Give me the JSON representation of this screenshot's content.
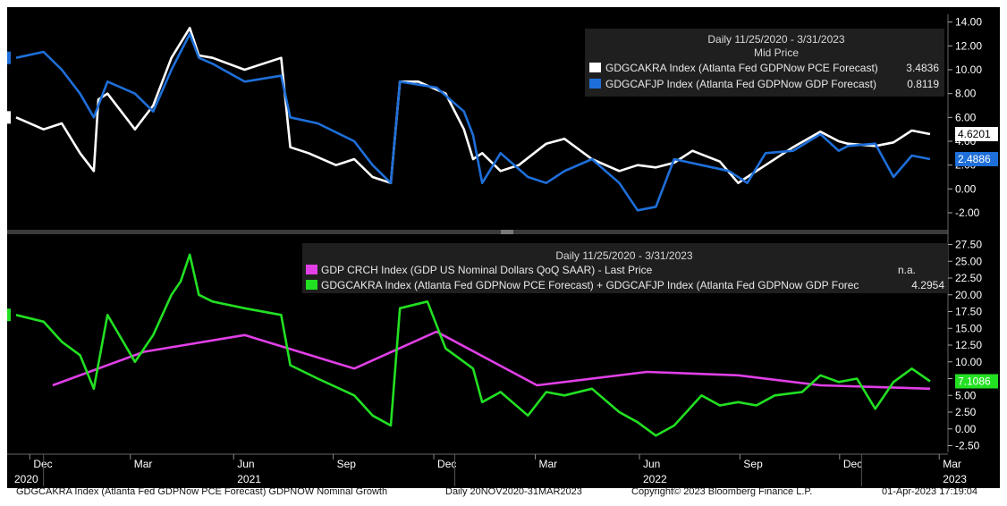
{
  "colors": {
    "background": "#000000",
    "pce": "#ffffff",
    "gdp": "#1e6fd9",
    "crch": "#e040e6",
    "sum": "#22e022",
    "axis_text": "#ffffff"
  },
  "legend_top": {
    "header": "Daily 11/25/2020 - 3/31/2023",
    "subheader": "Mid Price",
    "items": [
      {
        "label": "GDGCAKRA Index (Atlanta Fed GDPNow PCE Forecast)",
        "value": "3.4836"
      },
      {
        "label": "GDGCAFJP Index (Atlanta Fed GDPNow GDP Forecast)",
        "value": "0.8119"
      }
    ]
  },
  "legend_bottom": {
    "header": "Daily 11/25/2020 - 3/31/2023",
    "items": [
      {
        "label": "GDP CRCH Index (GDP US Nominal Dollars QoQ SAAR) - Last Price",
        "value": "n.a."
      },
      {
        "label": "GDGCAKRA Index (Atlanta Fed GDPNow PCE Forecast) + GDGCAFJP Index (Atlanta Fed GDPNow GDP Forec",
        "value": "4.2954"
      }
    ]
  },
  "footer": {
    "title": "GDGCAKRA Index (Atlanta Fed GDPNow PCE Forecast) GDPNOW Nominal Growth",
    "range": "Daily 20NOV2020-31MAR2023",
    "copyright": "Copyright© 2023 Bloomberg Finance L.P.",
    "timestamp": "01-Apr-2023 17:19:04"
  },
  "chart_data": [
    {
      "type": "line",
      "panel": "top",
      "ylim": [
        -3.2,
        14.8
      ],
      "yticks": [
        "14.00",
        "12.00",
        "10.00",
        "8.00",
        "6.00",
        "4.00",
        "2.00",
        "0.00",
        "-2.00"
      ],
      "last_value_labels": [
        {
          "series": "GDGCAKRA Index",
          "label": "4.6201"
        },
        {
          "series": "GDGCAFJP Index",
          "label": "2.4886"
        }
      ],
      "series": [
        {
          "name": "GDGCAKRA Index",
          "color": "#ffffff",
          "x": [
            0,
            0.03,
            0.05,
            0.07,
            0.085,
            0.09,
            0.1,
            0.13,
            0.15,
            0.17,
            0.19,
            0.2,
            0.215,
            0.25,
            0.29,
            0.3,
            0.32,
            0.35,
            0.37,
            0.39,
            0.41,
            0.42,
            0.44,
            0.47,
            0.49,
            0.5,
            0.51,
            0.53,
            0.55,
            0.58,
            0.6,
            0.63,
            0.66,
            0.68,
            0.7,
            0.72,
            0.74,
            0.77,
            0.79,
            0.8,
            0.82,
            0.85,
            0.88,
            0.9,
            0.91,
            0.94,
            0.96,
            0.98,
            1.0
          ],
          "y": [
            6,
            5,
            5.5,
            3,
            1.5,
            7.5,
            8,
            5,
            7,
            11,
            13.5,
            11.2,
            11,
            10,
            11,
            3.5,
            3,
            2,
            2.5,
            1,
            0.5,
            9,
            9,
            8,
            5,
            2.5,
            3,
            1.5,
            2,
            3.8,
            4.2,
            2.5,
            1.5,
            2,
            1.8,
            2.2,
            3.2,
            2.3,
            0.5,
            1,
            2,
            3.5,
            4.8,
            4,
            3.8,
            3.6,
            3.9,
            4.9,
            4.6
          ]
        },
        {
          "name": "GDGCAFJP Index",
          "color": "#1e6fd9",
          "x": [
            0,
            0.03,
            0.05,
            0.07,
            0.085,
            0.1,
            0.13,
            0.15,
            0.17,
            0.19,
            0.2,
            0.215,
            0.25,
            0.29,
            0.3,
            0.33,
            0.37,
            0.39,
            0.41,
            0.42,
            0.46,
            0.49,
            0.5,
            0.51,
            0.53,
            0.56,
            0.58,
            0.6,
            0.63,
            0.66,
            0.68,
            0.7,
            0.72,
            0.75,
            0.78,
            0.8,
            0.82,
            0.85,
            0.88,
            0.9,
            0.91,
            0.94,
            0.96,
            0.98,
            1.0
          ],
          "y": [
            11,
            11.5,
            10,
            8,
            6,
            9,
            8,
            6.5,
            10,
            13,
            11,
            10.5,
            9,
            9.5,
            6,
            5.5,
            4,
            2,
            0.5,
            9,
            8.5,
            6.5,
            4.5,
            0.5,
            3,
            1,
            0.5,
            1.5,
            2.5,
            0.5,
            -1.8,
            -1.5,
            2.5,
            2,
            1.5,
            0.5,
            3,
            3.2,
            4.6,
            3.2,
            3.6,
            3.8,
            1,
            2.8,
            2.5
          ]
        }
      ]
    },
    {
      "type": "line",
      "panel": "bottom",
      "ylim": [
        -3.5,
        28.5
      ],
      "yticks": [
        "27.50",
        "25.00",
        "22.50",
        "20.00",
        "17.50",
        "15.00",
        "12.50",
        "10.00",
        "7.50",
        "5.00",
        "2.50",
        "0.00",
        "-2.50"
      ],
      "last_value_labels": [
        {
          "series": "GDGCAKRA Index + GDGCAFJP Index",
          "label": "7.1086"
        }
      ],
      "x_labels": [
        {
          "month": "Dec",
          "year": "2020",
          "pos": 0.015
        },
        {
          "month": "Mar",
          "year": "",
          "pos": 0.125
        },
        {
          "month": "Jun",
          "year": "2021",
          "pos": 0.238
        },
        {
          "month": "Sep",
          "year": "",
          "pos": 0.347
        },
        {
          "month": "Dec",
          "year": "",
          "pos": 0.457
        },
        {
          "month": "Mar",
          "year": "",
          "pos": 0.568
        },
        {
          "month": "Jun",
          "year": "2022",
          "pos": 0.682
        },
        {
          "month": "Sep",
          "year": "",
          "pos": 0.792
        },
        {
          "month": "Dec",
          "year": "",
          "pos": 0.901
        },
        {
          "month": "Mar",
          "year": "2023",
          "pos": 1.01
        }
      ],
      "series": [
        {
          "name": "GDP CRCH Index",
          "color": "#e040e6",
          "x": [
            0.04,
            0.14,
            0.25,
            0.37,
            0.46,
            0.57,
            0.69,
            0.79,
            0.88,
            1.0
          ],
          "y": [
            6.5,
            11.5,
            14,
            9,
            14.5,
            6.5,
            8.5,
            8,
            6.5,
            6
          ]
        },
        {
          "name": "GDGCAKRA Index + GDGCAFJP Index",
          "color": "#22e022",
          "x": [
            0,
            0.03,
            0.05,
            0.07,
            0.085,
            0.1,
            0.13,
            0.15,
            0.17,
            0.18,
            0.19,
            0.2,
            0.215,
            0.25,
            0.29,
            0.3,
            0.33,
            0.37,
            0.39,
            0.41,
            0.42,
            0.45,
            0.47,
            0.5,
            0.51,
            0.53,
            0.56,
            0.58,
            0.6,
            0.63,
            0.66,
            0.68,
            0.7,
            0.72,
            0.75,
            0.77,
            0.79,
            0.81,
            0.83,
            0.86,
            0.88,
            0.9,
            0.92,
            0.94,
            0.96,
            0.98,
            1.0
          ],
          "y": [
            17,
            16,
            13,
            11,
            6,
            17,
            10,
            14,
            20,
            22,
            26,
            20,
            19,
            18,
            17,
            9.5,
            7.5,
            5,
            2,
            0.5,
            18,
            19,
            12,
            9,
            4,
            5.5,
            2,
            5.5,
            5,
            6,
            2.5,
            1,
            -1,
            0.5,
            5,
            3.5,
            4,
            3.5,
            5,
            5.5,
            8,
            7,
            7.5,
            3,
            7,
            9,
            7.1
          ]
        }
      ]
    }
  ]
}
